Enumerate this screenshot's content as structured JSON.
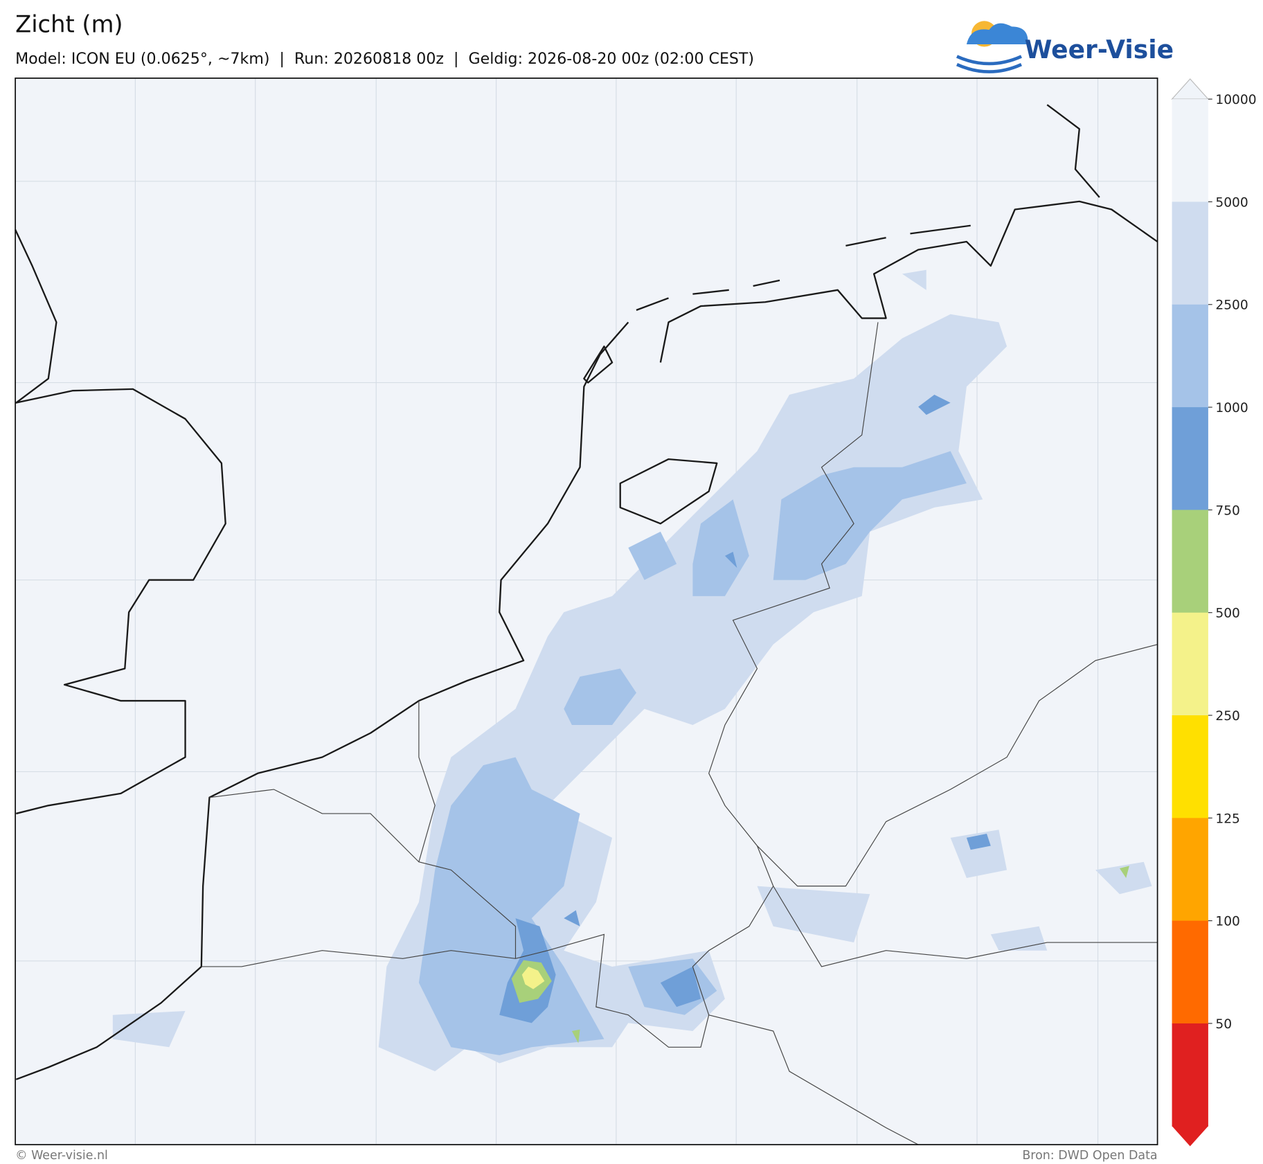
{
  "header": {
    "title": "Zicht (m)",
    "subtitle": "Model: ICON EU (0.0625°, ~7km)  |  Run: 20260818 00z  |  Geldig: 2026-08-20 00z (02:00 CEST)"
  },
  "logo": {
    "text": "Weer-Visie"
  },
  "colorbar": {
    "ticks": [
      10000,
      5000,
      2500,
      1000,
      750,
      500,
      250,
      125,
      100,
      50
    ],
    "colors": [
      "#f0f4f9",
      "#cfdcef",
      "#a5c3e8",
      "#6f9fd8",
      "#a8d07a",
      "#f4f28a",
      "#ffe000",
      "#ffa500",
      "#ff6a00",
      "#e02020"
    ]
  },
  "footer": {
    "left": "© Weer-visie.nl",
    "right": "Bron: DWD Open Data"
  }
}
